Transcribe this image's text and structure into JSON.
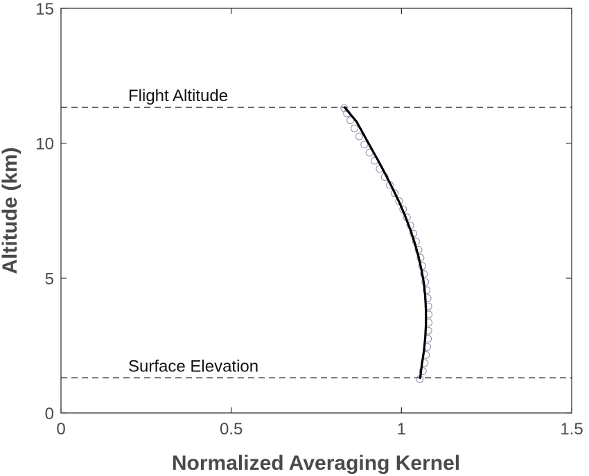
{
  "chart_data": {
    "type": "line",
    "title": "",
    "xlabel": "Normalized Averaging Kernel",
    "ylabel": "Altitude (km)",
    "xlim": [
      0,
      1.5
    ],
    "ylim": [
      0,
      15
    ],
    "xticks": [
      0,
      0.5,
      1,
      1.5
    ],
    "xtick_labels": [
      "0",
      "0.5",
      "1",
      "1.5"
    ],
    "yticks": [
      0,
      5,
      10,
      15
    ],
    "ytick_labels": [
      "0",
      "5",
      "10",
      "15"
    ],
    "grid": false,
    "reference_lines": [
      {
        "label": "Flight Altitude",
        "y": 11.33,
        "style": "dashed"
      },
      {
        "label": "Surface Elevation",
        "y": 1.3,
        "style": "dashed"
      }
    ],
    "series": [
      {
        "style": "circle-markers",
        "x": [
          1.054,
          1.063,
          1.068,
          1.072,
          1.076,
          1.078,
          1.079,
          1.08,
          1.08,
          1.079,
          1.077,
          1.074,
          1.07,
          1.066,
          1.061,
          1.056,
          1.05,
          1.043,
          1.035,
          1.026,
          1.016,
          1.005,
          0.993,
          0.98,
          0.966,
          0.951,
          0.936,
          0.921,
          0.906,
          0.891,
          0.876,
          0.862,
          0.85,
          0.84,
          0.832
        ],
        "y": [
          1.25,
          1.55,
          1.85,
          2.15,
          2.45,
          2.75,
          3.05,
          3.35,
          3.65,
          3.95,
          4.25,
          4.55,
          4.85,
          5.15,
          5.45,
          5.75,
          6.05,
          6.35,
          6.65,
          6.95,
          7.25,
          7.55,
          7.85,
          8.15,
          8.45,
          8.75,
          9.05,
          9.35,
          9.65,
          9.95,
          10.25,
          10.55,
          10.85,
          11.1,
          11.3
        ],
        "color": "#8a8fa8"
      },
      {
        "style": "solid-line",
        "x": [
          1.055,
          1.06,
          1.066,
          1.07,
          1.072,
          1.072,
          1.07,
          1.066,
          1.059,
          1.05,
          1.039,
          1.026,
          1.011,
          0.994,
          0.975,
          0.955,
          0.934,
          0.912,
          0.89,
          0.868,
          0.848,
          0.833
        ],
        "y": [
          1.3,
          1.8,
          2.3,
          2.8,
          3.3,
          3.8,
          4.3,
          4.8,
          5.3,
          5.8,
          6.3,
          6.8,
          7.3,
          7.8,
          8.3,
          8.8,
          9.3,
          9.8,
          10.3,
          10.8,
          11.1,
          11.33
        ],
        "color": "#000000"
      }
    ]
  }
}
